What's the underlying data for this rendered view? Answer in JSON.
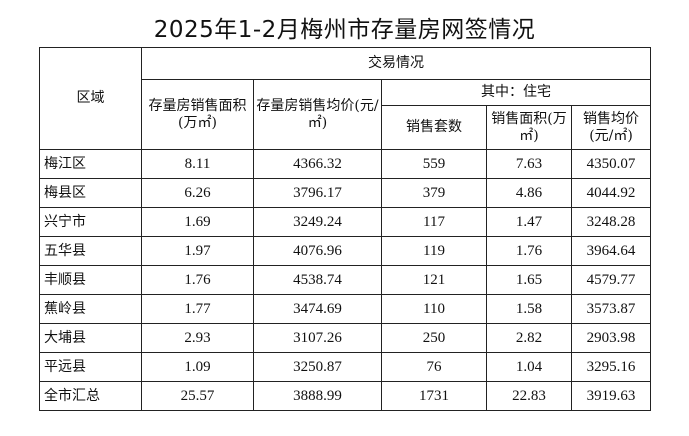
{
  "title": "2025年1-2月梅州市存量房网签情况",
  "table": {
    "header": {
      "region": "区域",
      "group": "交易情况",
      "area": "存量房销售面积(万㎡)",
      "price": "存量房销售均价(元/㎡)",
      "residential_group": "其中：住宅",
      "res_units": "销售套数",
      "res_area": "销售面积(万㎡)",
      "res_price": "销售均价(元/㎡)"
    },
    "rows": [
      {
        "region": "梅江区",
        "area": "8.11",
        "price": "4366.32",
        "units": "559",
        "res_area": "7.63",
        "res_price": "4350.07"
      },
      {
        "region": "梅县区",
        "area": "6.26",
        "price": "3796.17",
        "units": "379",
        "res_area": "4.86",
        "res_price": "4044.92"
      },
      {
        "region": "兴宁市",
        "area": "1.69",
        "price": "3249.24",
        "units": "117",
        "res_area": "1.47",
        "res_price": "3248.28"
      },
      {
        "region": "五华县",
        "area": "1.97",
        "price": "4076.96",
        "units": "119",
        "res_area": "1.76",
        "res_price": "3964.64"
      },
      {
        "region": "丰顺县",
        "area": "1.76",
        "price": "4538.74",
        "units": "121",
        "res_area": "1.65",
        "res_price": "4579.77"
      },
      {
        "region": "蕉岭县",
        "area": "1.77",
        "price": "3474.69",
        "units": "110",
        "res_area": "1.58",
        "res_price": "3573.87"
      },
      {
        "region": "大埔县",
        "area": "2.93",
        "price": "3107.26",
        "units": "250",
        "res_area": "2.82",
        "res_price": "2903.98"
      },
      {
        "region": "平远县",
        "area": "1.09",
        "price": "3250.87",
        "units": "76",
        "res_area": "1.04",
        "res_price": "3295.16"
      },
      {
        "region": "全市汇总",
        "area": "25.57",
        "price": "3888.99",
        "units": "1731",
        "res_area": "22.83",
        "res_price": "3919.63"
      }
    ]
  }
}
